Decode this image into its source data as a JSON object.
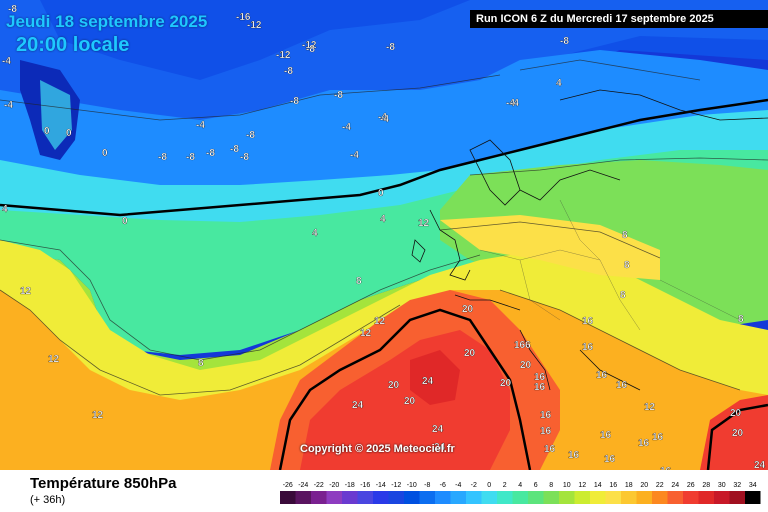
{
  "title": {
    "date": "Jeudi 18 septembre 2025",
    "time": "20:00 locale",
    "run": "Run ICON 6 Z du Mercredi 17 septembre 2025"
  },
  "copyright": "Copyright © 2025 Meteociel.fr",
  "footer": {
    "title": "Température 850hPa",
    "subtitle": "(+ 36h)"
  },
  "legend": {
    "ticks": [
      "-26",
      "-24",
      "-22",
      "-20",
      "-18",
      "-16",
      "-14",
      "-12",
      "-10",
      "-8",
      "-6",
      "-4",
      "-2",
      "0",
      "2",
      "4",
      "6",
      "8",
      "10",
      "12",
      "14",
      "16",
      "18",
      "20",
      "22",
      "24",
      "26",
      "28",
      "30",
      "32",
      "34"
    ],
    "colors": [
      "#3a0a3a",
      "#5a1460",
      "#7a2090",
      "#8e3cc0",
      "#6a3ad0",
      "#4a46e0",
      "#2a3ae8",
      "#1a46e0",
      "#0050e0",
      "#0c6ef0",
      "#1e8cff",
      "#28a8ff",
      "#34c4ff",
      "#40dcf0",
      "#40e8c8",
      "#48e8a0",
      "#5ce47c",
      "#7ce058",
      "#a4e43c",
      "#ccec30",
      "#f0ec38",
      "#fce048",
      "#fcc830",
      "#fcb020",
      "#fc8820",
      "#f86030",
      "#f03c30",
      "#e02828",
      "#c81828",
      "#a01020",
      "#000000"
    ]
  },
  "map_labels": [
    {
      "t": "-8"
    },
    {
      "t": "-16"
    },
    {
      "t": "-12"
    },
    {
      "t": "-12"
    },
    {
      "t": "-12"
    },
    {
      "t": "-8"
    },
    {
      "t": "-8"
    },
    {
      "t": "-8"
    },
    {
      "t": "-8"
    },
    {
      "t": "-4"
    },
    {
      "t": "-4"
    },
    {
      "t": "-4"
    },
    {
      "t": "-4"
    },
    {
      "t": "-4"
    },
    {
      "t": "4"
    },
    {
      "t": "-8"
    },
    {
      "t": "-8"
    },
    {
      "t": "-8"
    },
    {
      "t": "-8"
    },
    {
      "t": "-8"
    },
    {
      "t": "-8"
    },
    {
      "t": "-8"
    },
    {
      "t": "-8"
    },
    {
      "t": "-4"
    },
    {
      "t": "-4"
    },
    {
      "t": "-4"
    },
    {
      "t": "-4"
    },
    {
      "t": "0"
    },
    {
      "t": "0"
    },
    {
      "t": "0"
    },
    {
      "t": "0"
    },
    {
      "t": "0"
    },
    {
      "t": "4"
    },
    {
      "t": "4"
    },
    {
      "t": "4"
    },
    {
      "t": "8"
    },
    {
      "t": "8"
    },
    {
      "t": "8"
    },
    {
      "t": "8"
    },
    {
      "t": "8"
    },
    {
      "t": "8"
    },
    {
      "t": "12"
    },
    {
      "t": "12"
    },
    {
      "t": "12"
    },
    {
      "t": "12"
    },
    {
      "t": "12"
    },
    {
      "t": "12"
    },
    {
      "t": "16"
    },
    {
      "t": "16"
    },
    {
      "t": "16"
    },
    {
      "t": "16"
    },
    {
      "t": "16"
    },
    {
      "t": "16"
    },
    {
      "t": "16"
    },
    {
      "t": "16"
    },
    {
      "t": "16"
    },
    {
      "t": "16"
    },
    {
      "t": "16"
    },
    {
      "t": "16"
    },
    {
      "t": "16"
    },
    {
      "t": "16"
    },
    {
      "t": "16"
    },
    {
      "t": "20"
    },
    {
      "t": "20"
    },
    {
      "t": "20"
    },
    {
      "t": "20"
    },
    {
      "t": "20"
    },
    {
      "t": "20"
    },
    {
      "t": "20"
    },
    {
      "t": "20"
    },
    {
      "t": "24"
    },
    {
      "t": "24"
    },
    {
      "t": "24"
    },
    {
      "t": "24"
    },
    {
      "t": "24"
    },
    {
      "t": "166"
    },
    {
      "t": "12"
    }
  ]
}
